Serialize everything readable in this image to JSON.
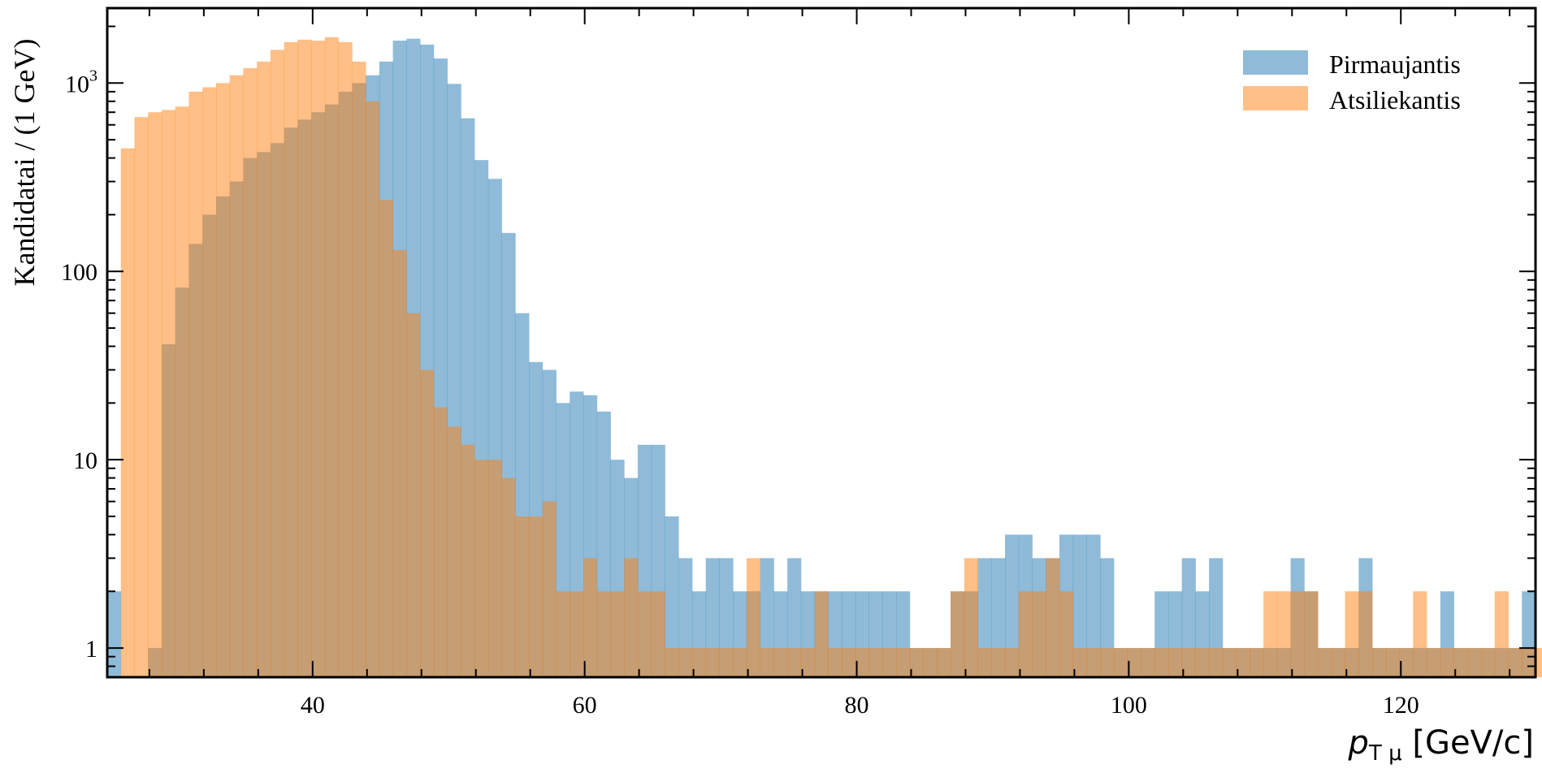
{
  "chart_data": {
    "type": "bar",
    "histogram": true,
    "xlabel": "pTμ [GeV/c]",
    "ylabel": "Kandidatai / (1 GeV)",
    "xlim": [
      24.9,
      129.9
    ],
    "ylim": [
      0.7,
      2500
    ],
    "yscale": "log",
    "bin_width": 1,
    "x_start": 24.9,
    "x_ticks": [
      40,
      60,
      80,
      100,
      120
    ],
    "x_tick_labels": [
      "40",
      "60",
      "80",
      "100",
      "120"
    ],
    "y_ticks": [
      1,
      10,
      100,
      1000
    ],
    "y_tick_labels": [
      "1",
      "10",
      "100",
      "10^3"
    ],
    "legend_position": "top-right",
    "grid": false,
    "series": [
      {
        "name": "Pirmaujantis",
        "color": "#1f77b4",
        "opacity": 0.5,
        "values": [
          2,
          0,
          0,
          1,
          41,
          82,
          140,
          200,
          250,
          300,
          400,
          430,
          480,
          580,
          640,
          700,
          770,
          900,
          1000,
          1100,
          1300,
          1680,
          1720,
          1600,
          1350,
          990,
          650,
          390,
          310,
          160,
          60,
          33,
          30,
          20,
          23,
          22,
          18,
          10,
          8,
          12,
          12,
          5,
          3,
          2,
          3,
          3,
          2,
          2,
          3,
          2,
          3,
          2,
          2,
          2,
          2,
          2,
          2,
          2,
          2,
          1,
          1,
          1,
          2,
          2,
          3,
          3,
          4,
          4,
          3,
          3,
          4,
          4,
          4,
          3,
          1,
          1,
          1,
          2,
          2,
          3,
          2,
          3,
          1,
          1,
          1,
          1,
          1,
          3,
          2,
          1,
          1,
          1,
          3,
          1,
          1,
          1,
          1,
          1,
          2,
          1,
          1,
          1,
          1,
          1,
          2
        ]
      },
      {
        "name": "Atsiliekantis",
        "color": "#ff7f0e",
        "opacity": 0.5,
        "values": [
          0,
          450,
          660,
          700,
          720,
          750,
          900,
          950,
          1000,
          1100,
          1200,
          1300,
          1500,
          1650,
          1700,
          1680,
          1750,
          1650,
          1300,
          800,
          240,
          130,
          60,
          30,
          19,
          15,
          12,
          10,
          10,
          8,
          5,
          5,
          6,
          2,
          2,
          3,
          2,
          2,
          3,
          2,
          2,
          1,
          1,
          1,
          1,
          1,
          1,
          3,
          1,
          1,
          1,
          1,
          2,
          1,
          1,
          1,
          1,
          1,
          1,
          1,
          1,
          1,
          2,
          3,
          1,
          1,
          1,
          2,
          2,
          3,
          2,
          1,
          1,
          1,
          1,
          1,
          1,
          1,
          1,
          1,
          1,
          1,
          1,
          1,
          1,
          2,
          2,
          2,
          2,
          1,
          1,
          2,
          2,
          1,
          1,
          1,
          2,
          1,
          1,
          1,
          1,
          1,
          2,
          1,
          1,
          1
        ]
      }
    ]
  },
  "legend": {
    "items": [
      {
        "label": "Pirmaujantis",
        "color": "#1f77b4"
      },
      {
        "label": "Atsiliekantis",
        "color": "#ff7f0e"
      }
    ]
  },
  "axes": {
    "xlabel_main": "p",
    "xlabel_sub": "T μ",
    "xlabel_unit": " [GeV/c]",
    "ylabel": "Kandidatai / (1 GeV)"
  }
}
